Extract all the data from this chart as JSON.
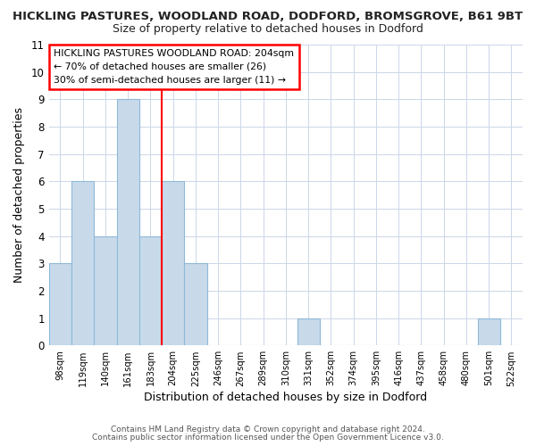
{
  "title": "HICKLING PASTURES, WOODLAND ROAD, DODFORD, BROMSGROVE, B61 9BT",
  "subtitle": "Size of property relative to detached houses in Dodford",
  "xlabel": "Distribution of detached houses by size in Dodford",
  "ylabel": "Number of detached properties",
  "bar_labels": [
    "98sqm",
    "119sqm",
    "140sqm",
    "161sqm",
    "183sqm",
    "204sqm",
    "225sqm",
    "246sqm",
    "267sqm",
    "289sqm",
    "310sqm",
    "331sqm",
    "352sqm",
    "374sqm",
    "395sqm",
    "416sqm",
    "437sqm",
    "458sqm",
    "480sqm",
    "501sqm",
    "522sqm"
  ],
  "bar_values": [
    3,
    6,
    4,
    9,
    4,
    6,
    3,
    0,
    0,
    0,
    0,
    1,
    0,
    0,
    0,
    0,
    0,
    0,
    0,
    1,
    0
  ],
  "bar_color": "#c8daea",
  "bar_edge_color": "#8eb8d8",
  "red_line_x": 4.5,
  "ylim": [
    0,
    11
  ],
  "yticks": [
    0,
    1,
    2,
    3,
    4,
    5,
    6,
    7,
    8,
    9,
    10,
    11
  ],
  "annotation_title": "HICKLING PASTURES WOODLAND ROAD: 204sqm",
  "annotation_line1": "← 70% of detached houses are smaller (26)",
  "annotation_line2": "30% of semi-detached houses are larger (11) →",
  "footer1": "Contains HM Land Registry data © Crown copyright and database right 2024.",
  "footer2": "Contains public sector information licensed under the Open Government Licence v3.0.",
  "background_color": "#ffffff",
  "grid_color": "#ccd6e8"
}
